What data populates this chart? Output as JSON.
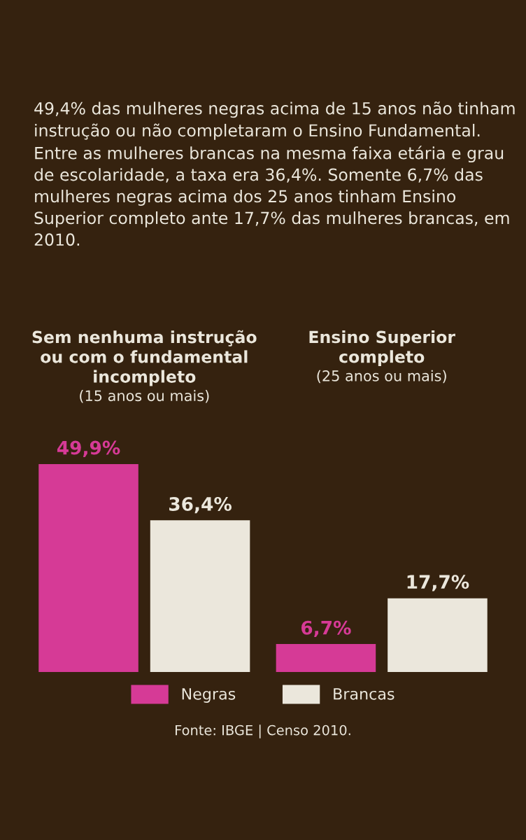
{
  "chart_data": {
    "type": "bar",
    "title": "49,4% das mulheres negras acima de 15 anos não tinham instrução ou não completaram o Ensino Fundamental. Entre as mulheres brancas na mesma faixa etária e grau de escolaridade, a taxa era 36,4%. Somente 6,7% das mulheres negras acima dos 25 anos tinham Ensino Superior completo ante 17,7% das mulheres brancas, em 2010.",
    "categories": [
      "Sem nenhuma instrução\nou com o fundamental\nincompleto\n(15 anos ou mais)",
      "Ensino Superior\ncompleto\n(25 anos ou mais)"
    ],
    "series": [
      {
        "name": "Negras",
        "color": "#d63a96",
        "values": [
          49.9,
          6.7
        ],
        "value_labels": [
          "49,9%",
          "6,7%"
        ]
      },
      {
        "name": "Brancas",
        "color": "#ebe7dc",
        "values": [
          36.4,
          17.7
        ],
        "value_labels": [
          "36,4%",
          "17,7%"
        ]
      }
    ],
    "legend": "bottom",
    "annotations": [
      "Fonte: IBGE | Censo 2010."
    ]
  }
}
